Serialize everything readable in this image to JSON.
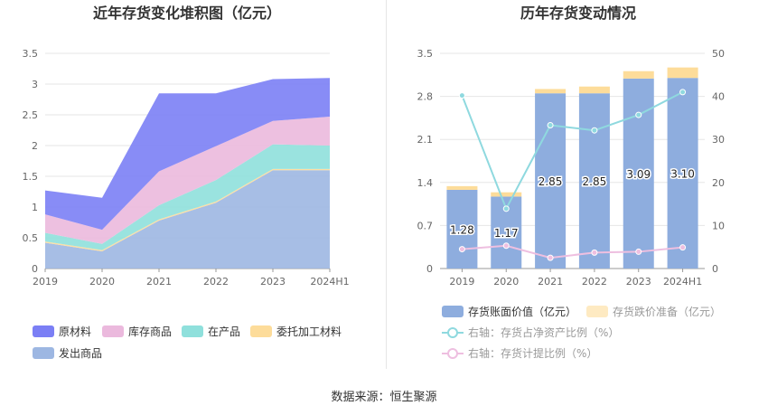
{
  "source": "数据来源：恒生聚源",
  "colors": {
    "raw": "#7b7ff5",
    "inventory": "#ebb9dd",
    "wip": "#8fe0dc",
    "consign": "#fddc9a",
    "shipped": "#9db7e2",
    "bar_book": "#8eadde",
    "bar_reserve": "#fddc9a",
    "line1": "#8fd9df",
    "line2": "#eebfe0",
    "axis_text": "#666666",
    "grid": "#e6e6e6"
  },
  "chart_data": [
    {
      "type": "area",
      "stacked": true,
      "title": "近年存货变化堆积图（亿元）",
      "categories": [
        "2019",
        "2020",
        "2021",
        "2022",
        "2023",
        "2024H1"
      ],
      "ylim": [
        0,
        3.5
      ],
      "yticks": [
        "0",
        "0.5",
        "1",
        "1.5",
        "2",
        "2.5",
        "3",
        "3.5"
      ],
      "grid": true,
      "legend_position": "bottom",
      "series": [
        {
          "name": "发出商品",
          "key": "shipped",
          "values": [
            0.42,
            0.28,
            0.78,
            1.07,
            1.6,
            1.6
          ]
        },
        {
          "name": "委托加工材料",
          "key": "consign",
          "values": [
            0.02,
            0.02,
            0.02,
            0.02,
            0.02,
            0.02
          ]
        },
        {
          "name": "在产品",
          "key": "wip",
          "values": [
            0.14,
            0.1,
            0.23,
            0.35,
            0.4,
            0.38
          ]
        },
        {
          "name": "库存商品",
          "key": "inventory",
          "values": [
            0.3,
            0.23,
            0.55,
            0.55,
            0.38,
            0.47
          ]
        },
        {
          "name": "原材料",
          "key": "raw",
          "values": [
            0.39,
            0.52,
            1.27,
            0.86,
            0.68,
            0.63
          ]
        }
      ],
      "legend": [
        {
          "name": "原材料",
          "key": "raw"
        },
        {
          "name": "库存商品",
          "key": "inventory"
        },
        {
          "name": "在产品",
          "key": "wip"
        },
        {
          "name": "委托加工材料",
          "key": "consign"
        },
        {
          "name": "发出商品",
          "key": "shipped"
        }
      ]
    },
    {
      "type": "bar",
      "stacked": true,
      "title": "历年存货变动情况",
      "categories": [
        "2019",
        "2020",
        "2021",
        "2022",
        "2023",
        "2024H1"
      ],
      "ylim": [
        0,
        3.5
      ],
      "yticks": [
        "0",
        "0.7",
        "1.4",
        "2.1",
        "2.8",
        "3.5"
      ],
      "y2lim": [
        0,
        50
      ],
      "y2ticks": [
        "0",
        "10",
        "20",
        "30",
        "40",
        "50"
      ],
      "grid": true,
      "legend_position": "bottom",
      "series": [
        {
          "name": "存货账面价值（亿元）",
          "key": "bar_book",
          "values": [
            1.28,
            1.17,
            2.85,
            2.85,
            3.09,
            3.1
          ],
          "labels": [
            "1.28",
            "1.17",
            "2.85",
            "2.85",
            "3.09",
            "3.10"
          ]
        },
        {
          "name": "存货跌价准备（亿元）",
          "key": "bar_reserve",
          "values": [
            0.06,
            0.07,
            0.07,
            0.11,
            0.12,
            0.17
          ]
        }
      ],
      "lines": [
        {
          "name": "右轴：存货占净资产比例（%）",
          "key": "line1",
          "axis": "right",
          "values": [
            40.2,
            13.9,
            33.3,
            32.1,
            35.7,
            41.0
          ]
        },
        {
          "name": "右轴：存货计提比例（%）",
          "key": "line2",
          "axis": "right",
          "values": [
            4.5,
            5.3,
            2.5,
            3.7,
            3.9,
            4.9
          ]
        }
      ]
    }
  ]
}
